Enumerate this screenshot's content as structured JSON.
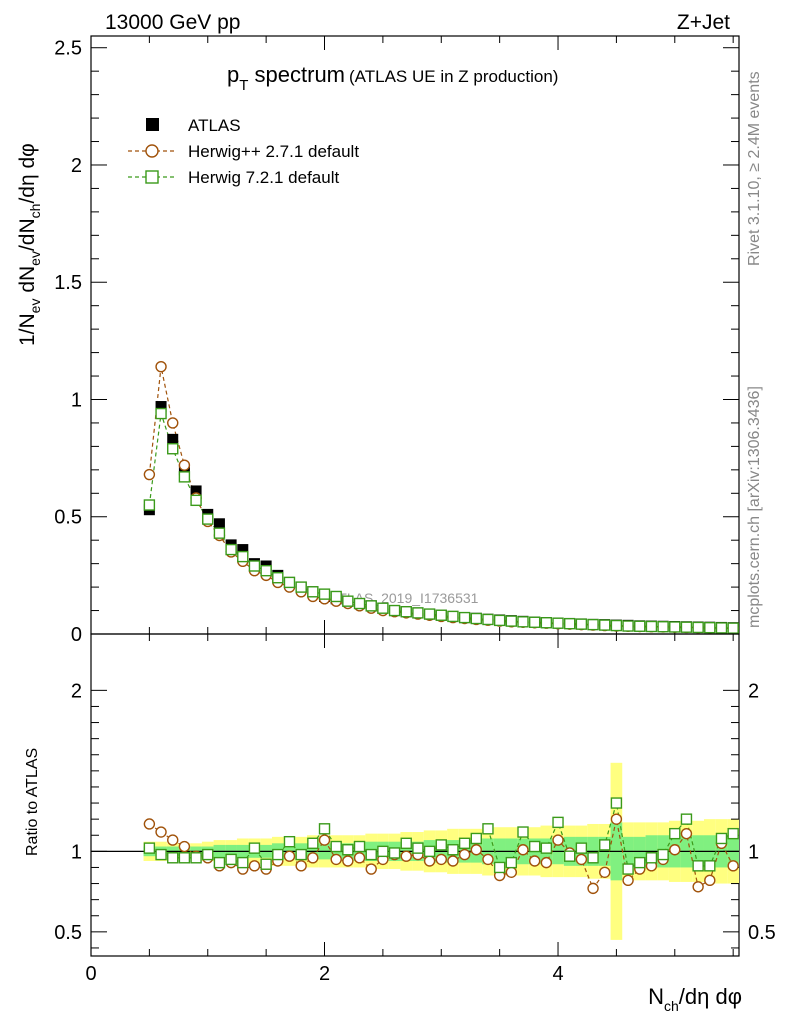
{
  "header": {
    "left": "13000 GeV pp",
    "right": "Z+Jet"
  },
  "side_labels": {
    "rivet": "Rivet 3.1.10, ≥ 2.4M events",
    "mcplots": "mcplots.cern.ch [arXiv:1306.3436]"
  },
  "watermark": "ATLAS_2019_I1736531",
  "colors": {
    "atlas": "#000000",
    "herwigpp": "#a0520a",
    "herwig7": "#3a9a1a",
    "band_outer": "#ffff80",
    "band_inner": "#80f080"
  },
  "chart_data": [
    {
      "id": "main",
      "type": "scatter",
      "title_main": "p",
      "title_sub": "T",
      "title_rest": " spectrum",
      "title_paren": "(ATLAS UE in Z production)",
      "ylabel": "1/N_ev dN_ev/dN_ch/dη dφ",
      "xlim": [
        0,
        5.55
      ],
      "ylim": [
        0,
        2.55
      ],
      "yticks": [
        "0",
        "0.5",
        "1",
        "1.5",
        "2",
        "2.5"
      ],
      "legend": [
        "ATLAS",
        "Herwig++ 2.7.1 default",
        "Herwig 7.2.1 default"
      ],
      "x": [
        0.5,
        0.6,
        0.7,
        0.8,
        0.9,
        1.0,
        1.1,
        1.2,
        1.3,
        1.4,
        1.5,
        1.6,
        1.7,
        1.8,
        1.9,
        2.0,
        2.1,
        2.2,
        2.3,
        2.4,
        2.5,
        2.6,
        2.7,
        2.8,
        2.9,
        3.0,
        3.1,
        3.2,
        3.3,
        3.4,
        3.5,
        3.6,
        3.7,
        3.8,
        3.9,
        4.0,
        4.1,
        4.2,
        4.3,
        4.4,
        4.5,
        4.6,
        4.7,
        4.8,
        4.9,
        5.0,
        5.1,
        5.2,
        5.3,
        5.4,
        5.5
      ],
      "series": [
        {
          "name": "ATLAS",
          "values": [
            0.53,
            0.97,
            0.83,
            0.7,
            0.61,
            0.51,
            0.47,
            0.38,
            0.36,
            0.3,
            0.29,
            0.25,
            0.22,
            0.2,
            0.18,
            0.16,
            0.15,
            0.14,
            0.13,
            0.12,
            0.11,
            0.1,
            0.095,
            0.09,
            0.085,
            0.08,
            0.075,
            0.07,
            0.067,
            0.063,
            0.06,
            0.057,
            0.054,
            0.051,
            0.049,
            0.047,
            0.045,
            0.043,
            0.041,
            0.04,
            0.038,
            0.037,
            0.035,
            0.034,
            0.033,
            0.032,
            0.031,
            0.03,
            0.029,
            0.028,
            0.027
          ]
        },
        {
          "name": "Herwig++ 2.7.1 default",
          "values": [
            0.68,
            1.14,
            0.9,
            0.72,
            0.58,
            0.48,
            0.42,
            0.35,
            0.31,
            0.27,
            0.25,
            0.22,
            0.2,
            0.18,
            0.16,
            0.15,
            0.14,
            0.13,
            0.12,
            0.11,
            0.1,
            0.095,
            0.09,
            0.085,
            0.08,
            0.075,
            0.07,
            0.066,
            0.062,
            0.059,
            0.055,
            0.052,
            0.05,
            0.048,
            0.046,
            0.044,
            0.042,
            0.04,
            0.038,
            0.036,
            0.034,
            0.033,
            0.032,
            0.031,
            0.03,
            0.029,
            0.028,
            0.027,
            0.026,
            0.025,
            0.024
          ]
        },
        {
          "name": "Herwig 7.2.1 default",
          "values": [
            0.55,
            0.94,
            0.79,
            0.67,
            0.57,
            0.49,
            0.43,
            0.36,
            0.33,
            0.29,
            0.27,
            0.24,
            0.22,
            0.2,
            0.18,
            0.17,
            0.16,
            0.14,
            0.13,
            0.12,
            0.11,
            0.1,
            0.095,
            0.09,
            0.085,
            0.08,
            0.075,
            0.07,
            0.066,
            0.062,
            0.058,
            0.055,
            0.052,
            0.05,
            0.048,
            0.046,
            0.044,
            0.042,
            0.04,
            0.038,
            0.036,
            0.034,
            0.033,
            0.032,
            0.031,
            0.03,
            0.029,
            0.028,
            0.027,
            0.026,
            0.025
          ]
        }
      ]
    },
    {
      "id": "ratio",
      "type": "scatter",
      "ylabel": "Ratio to ATLAS",
      "xlabel": "N_ch/dη dφ",
      "xlim": [
        0,
        5.55
      ],
      "ylim": [
        0.35,
        2.35
      ],
      "yticks": [
        "0.5",
        "1",
        "2"
      ],
      "xticks": [
        "0",
        "2",
        "4"
      ],
      "x": [
        0.5,
        0.6,
        0.7,
        0.8,
        0.9,
        1.0,
        1.1,
        1.2,
        1.3,
        1.4,
        1.5,
        1.6,
        1.7,
        1.8,
        1.9,
        2.0,
        2.1,
        2.2,
        2.3,
        2.4,
        2.5,
        2.6,
        2.7,
        2.8,
        2.9,
        3.0,
        3.1,
        3.2,
        3.3,
        3.4,
        3.5,
        3.6,
        3.7,
        3.8,
        3.9,
        4.0,
        4.1,
        4.2,
        4.3,
        4.4,
        4.5,
        4.6,
        4.7,
        4.8,
        4.9,
        5.0,
        5.1,
        5.2,
        5.3,
        5.4,
        5.5
      ],
      "band_outer": [
        0.06,
        0.06,
        0.05,
        0.05,
        0.05,
        0.06,
        0.07,
        0.07,
        0.08,
        0.08,
        0.08,
        0.09,
        0.09,
        0.09,
        0.1,
        0.1,
        0.1,
        0.1,
        0.1,
        0.11,
        0.11,
        0.11,
        0.12,
        0.12,
        0.13,
        0.13,
        0.14,
        0.14,
        0.14,
        0.15,
        0.15,
        0.15,
        0.15,
        0.15,
        0.16,
        0.16,
        0.16,
        0.16,
        0.17,
        0.17,
        0.55,
        0.18,
        0.18,
        0.18,
        0.18,
        0.19,
        0.19,
        0.19,
        0.2,
        0.2,
        0.2
      ],
      "band_inner": [
        0.03,
        0.03,
        0.03,
        0.03,
        0.03,
        0.03,
        0.04,
        0.04,
        0.04,
        0.04,
        0.04,
        0.05,
        0.05,
        0.05,
        0.05,
        0.05,
        0.05,
        0.05,
        0.06,
        0.06,
        0.06,
        0.06,
        0.06,
        0.06,
        0.07,
        0.07,
        0.07,
        0.07,
        0.07,
        0.08,
        0.08,
        0.08,
        0.08,
        0.08,
        0.08,
        0.08,
        0.09,
        0.09,
        0.09,
        0.09,
        0.18,
        0.09,
        0.09,
        0.1,
        0.1,
        0.1,
        0.1,
        0.1,
        0.1,
        0.1,
        0.1
      ],
      "series": [
        {
          "name": "Herwig++ 2.7.1 default",
          "values": [
            1.17,
            1.12,
            1.07,
            1.03,
            0.97,
            0.96,
            0.91,
            0.93,
            0.89,
            0.91,
            0.89,
            0.94,
            0.97,
            0.91,
            0.96,
            1.07,
            0.95,
            0.94,
            0.96,
            0.89,
            0.95,
            0.98,
            0.97,
            0.98,
            0.94,
            0.95,
            0.94,
            0.98,
            1.01,
            0.95,
            0.85,
            0.87,
            1.01,
            0.94,
            0.93,
            1.07,
            0.99,
            0.95,
            0.77,
            0.87,
            1.2,
            0.82,
            0.89,
            0.91,
            0.95,
            1.01,
            1.11,
            0.78,
            0.82,
            1.05,
            0.91
          ]
        },
        {
          "name": "Herwig 7.2.1 default",
          "values": [
            1.02,
            0.98,
            0.96,
            0.96,
            0.96,
            0.98,
            0.93,
            0.95,
            0.93,
            1.02,
            0.92,
            0.98,
            1.06,
            0.98,
            1.05,
            1.14,
            1.03,
            1.01,
            1.03,
            0.98,
            1.0,
            0.99,
            1.05,
            1.02,
            1.0,
            1.04,
            1.01,
            1.05,
            1.08,
            1.14,
            0.9,
            0.93,
            1.12,
            1.03,
            1.02,
            1.18,
            0.97,
            1.02,
            0.96,
            1.04,
            1.3,
            0.89,
            0.93,
            0.96,
            0.98,
            1.11,
            1.2,
            0.91,
            0.91,
            1.08,
            1.11
          ]
        }
      ]
    }
  ]
}
